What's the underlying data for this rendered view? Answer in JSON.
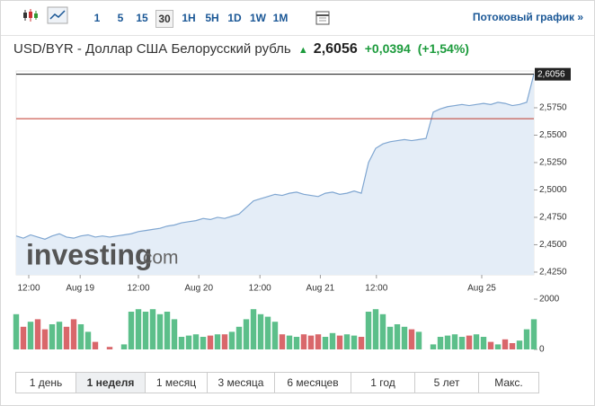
{
  "toolbar": {
    "intervals": [
      "1",
      "5",
      "15",
      "30",
      "1H",
      "5H",
      "1D",
      "1W",
      "1M"
    ],
    "active_interval": 3,
    "stream_link": "Потоковый график »"
  },
  "header": {
    "pair": "USD/BYR - Доллар США Белорусский рубль",
    "price": "2,6056",
    "change": "+0,0394",
    "change_pct": "(+1,54%)"
  },
  "watermark": {
    "brand": "investing",
    "suffix": ".com"
  },
  "chart_data": {
    "type": "line",
    "color": "#7fa6d1",
    "fill": "#e4edf7",
    "x": [
      0,
      1,
      2,
      3,
      4,
      5,
      6,
      7,
      8,
      9,
      10,
      11,
      12,
      13,
      14,
      15,
      16,
      17,
      18,
      19,
      20,
      21,
      22,
      23,
      24,
      25,
      26,
      27,
      28,
      29,
      30,
      31,
      32,
      33,
      34,
      35,
      36,
      37,
      38,
      39,
      40,
      41,
      42,
      43,
      44,
      45,
      46,
      47,
      48,
      49,
      50,
      51,
      52,
      53,
      54,
      55,
      56,
      57,
      58,
      59,
      60,
      61,
      62,
      63,
      64,
      65,
      66,
      67,
      68,
      69,
      70,
      71,
      72
    ],
    "values": [
      2.458,
      2.456,
      2.459,
      2.457,
      2.455,
      2.458,
      2.46,
      2.457,
      2.456,
      2.458,
      2.459,
      2.457,
      2.458,
      2.457,
      2.458,
      2.459,
      2.46,
      2.462,
      2.463,
      2.464,
      2.465,
      2.467,
      2.468,
      2.47,
      2.471,
      2.472,
      2.474,
      2.473,
      2.475,
      2.474,
      2.476,
      2.478,
      2.484,
      2.49,
      2.492,
      2.494,
      2.496,
      2.495,
      2.497,
      2.498,
      2.496,
      2.495,
      2.494,
      2.497,
      2.498,
      2.496,
      2.497,
      2.499,
      2.497,
      2.525,
      2.538,
      2.542,
      2.544,
      2.545,
      2.546,
      2.545,
      2.546,
      2.547,
      2.571,
      2.574,
      2.576,
      2.577,
      2.578,
      2.577,
      2.578,
      2.579,
      2.578,
      2.58,
      2.579,
      2.577,
      2.578,
      2.58,
      2.6056
    ],
    "xlim": [
      0,
      72
    ],
    "xticks": [
      {
        "value": 1.75,
        "label": "12:00"
      },
      {
        "value": 8.9,
        "label": "Aug 19"
      },
      {
        "value": 17,
        "label": "12:00"
      },
      {
        "value": 25.4,
        "label": "Aug 20"
      },
      {
        "value": 33.9,
        "label": "12:00"
      },
      {
        "value": 42.3,
        "label": "Aug 21"
      },
      {
        "value": 50.1,
        "label": "12:00"
      },
      {
        "value": 64.75,
        "label": "Aug 25"
      }
    ],
    "ylim": [
      2.4225,
      2.6086
    ],
    "yticks": [
      {
        "value": 2.425,
        "label": "2,4250"
      },
      {
        "value": 2.45,
        "label": "2,4500"
      },
      {
        "value": 2.475,
        "label": "2,4750"
      },
      {
        "value": 2.5,
        "label": "2,5000"
      },
      {
        "value": 2.525,
        "label": "2,5250"
      },
      {
        "value": 2.55,
        "label": "2,5500"
      },
      {
        "value": 2.575,
        "label": "2,5750"
      }
    ],
    "last_price": {
      "value": 2.6056,
      "label": "2,6056"
    },
    "reference_line": 2.565,
    "reference_color": "#c0392b",
    "volume": {
      "values": [
        1400,
        900,
        1100,
        1200,
        800,
        1000,
        1100,
        900,
        1200,
        1000,
        700,
        300,
        0,
        100,
        0,
        200,
        1500,
        1600,
        1500,
        1600,
        1400,
        1500,
        1200,
        500,
        550,
        600,
        500,
        550,
        600,
        600,
        700,
        900,
        1200,
        1600,
        1400,
        1300,
        1100,
        600,
        550,
        500,
        600,
        550,
        600,
        500,
        650,
        550,
        600,
        550,
        500,
        1500,
        1600,
        1400,
        900,
        1000,
        900,
        800,
        700,
        0,
        200,
        500,
        550,
        600,
        500,
        550,
        600,
        500,
        300,
        200,
        400,
        250,
        350,
        800,
        1200
      ],
      "ylim": [
        0,
        2000
      ],
      "yticks": [
        0,
        2000
      ],
      "up_color": "#5cbf8a",
      "down_color": "#d9676b"
    }
  },
  "periods": {
    "items": [
      "1 день",
      "1 неделя",
      "1 месяц",
      "3 месяца",
      "6 месяцев",
      "1 год",
      "5 лет",
      "Макс."
    ],
    "active": 1
  }
}
